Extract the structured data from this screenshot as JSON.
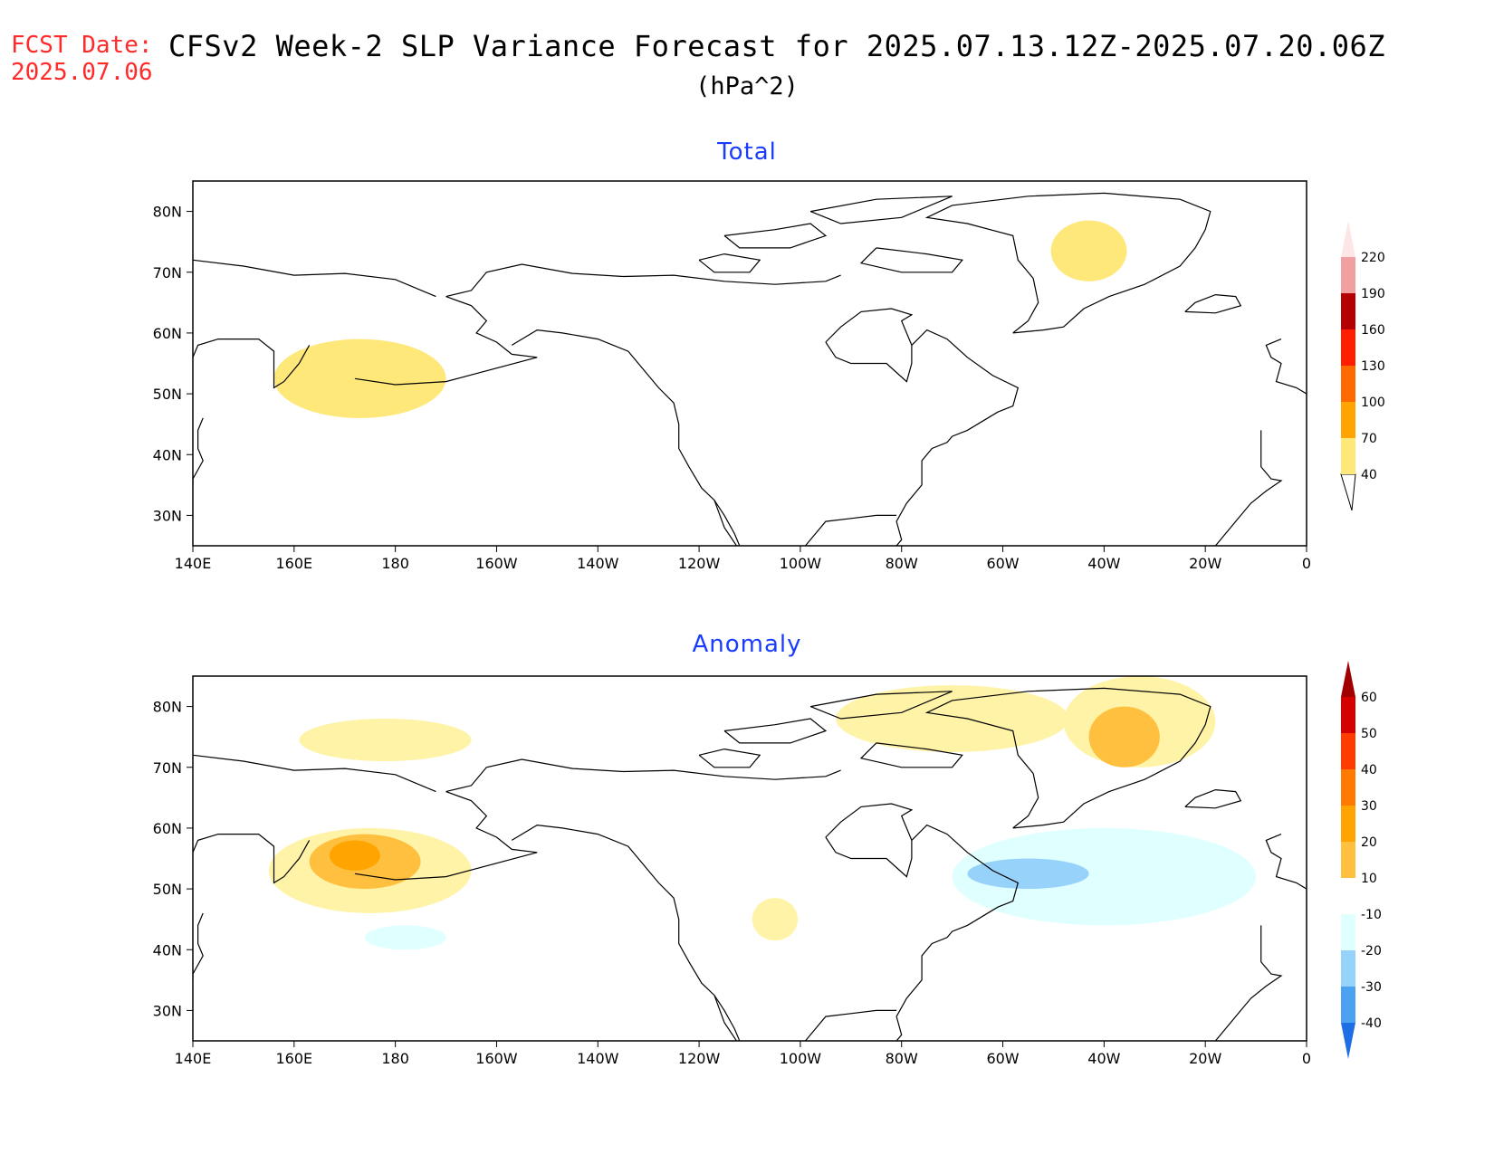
{
  "header": {
    "fcst_label": "FCST Date:",
    "fcst_date": "2025.07.06",
    "title": "CFSv2 Week-2 SLP Variance Forecast for 2025.07.13.12Z-2025.07.20.06Z",
    "units": "(hPa^2)"
  },
  "axes": {
    "lat_labels": [
      "80N",
      "70N",
      "60N",
      "50N",
      "40N",
      "30N"
    ],
    "lat_values": [
      80,
      70,
      60,
      50,
      40,
      30
    ],
    "lon_labels": [
      "140E",
      "160E",
      "180",
      "160W",
      "140W",
      "120W",
      "100W",
      "80W",
      "60W",
      "40W",
      "20W",
      "0"
    ],
    "lon_values": [
      140,
      160,
      180,
      200,
      220,
      240,
      260,
      280,
      300,
      320,
      340,
      360
    ],
    "lon_range": [
      140,
      360
    ],
    "lat_range": [
      25,
      85
    ]
  },
  "panels": [
    {
      "title": "Total",
      "colorbar": {
        "levels": [
          "40",
          "70",
          "100",
          "130",
          "160",
          "190",
          "220"
        ],
        "colors": [
          "#ffe87a",
          "#ffa400",
          "#ff6a00",
          "#ff1e00",
          "#b40000",
          "#f0a0a0",
          "#fde6e6"
        ]
      },
      "regions": [
        {
          "lon": 173,
          "lat": 52.5,
          "rx_deg": 17,
          "ry_deg": 6.5,
          "color": "#ffe87a"
        },
        {
          "lon": 317,
          "lat": 73.5,
          "rx_deg": 7.5,
          "ry_deg": 5,
          "color": "#ffe87a"
        }
      ]
    },
    {
      "title": "Anomaly",
      "colorbar": {
        "levels": [
          "60",
          "50",
          "40",
          "30",
          "20",
          "10",
          "-10",
          "-20",
          "-30",
          "-40"
        ],
        "pos_colors": [
          "#d40000",
          "#ff3c00",
          "#ff7a00",
          "#ffa400",
          "#ffc040",
          "#fff3a8"
        ],
        "neg_colors": [
          "#e0ffff",
          "#96d2fa",
          "#4ba2f0",
          "#1e6ee6"
        ]
      },
      "regions": [
        {
          "lon": 175,
          "lat": 53,
          "rx_deg": 20,
          "ry_deg": 7,
          "color": "#fff3a8"
        },
        {
          "lon": 174,
          "lat": 54.5,
          "rx_deg": 11,
          "ry_deg": 4.5,
          "color": "#ffc040"
        },
        {
          "lon": 172,
          "lat": 55.5,
          "rx_deg": 5,
          "ry_deg": 2.5,
          "color": "#ffa400"
        },
        {
          "lon": 178,
          "lat": 74.5,
          "rx_deg": 17,
          "ry_deg": 3.5,
          "color": "#fff3a8"
        },
        {
          "lon": 290,
          "lat": 78,
          "rx_deg": 23,
          "ry_deg": 5.5,
          "color": "#fff3a8"
        },
        {
          "lon": 327,
          "lat": 77.5,
          "rx_deg": 15,
          "ry_deg": 7.5,
          "color": "#fff3a8"
        },
        {
          "lon": 324,
          "lat": 75,
          "rx_deg": 7,
          "ry_deg": 5,
          "color": "#ffc040"
        },
        {
          "lon": 255,
          "lat": 45,
          "rx_deg": 4.5,
          "ry_deg": 3.5,
          "color": "#fff3a8"
        },
        {
          "lon": 182,
          "lat": 42,
          "rx_deg": 8,
          "ry_deg": 2,
          "color": "#e0ffff"
        },
        {
          "lon": 320,
          "lat": 52,
          "rx_deg": 30,
          "ry_deg": 8,
          "color": "#e0ffff"
        },
        {
          "lon": 305,
          "lat": 52.5,
          "rx_deg": 12,
          "ry_deg": 2.5,
          "color": "#96d2fa"
        }
      ]
    }
  ]
}
